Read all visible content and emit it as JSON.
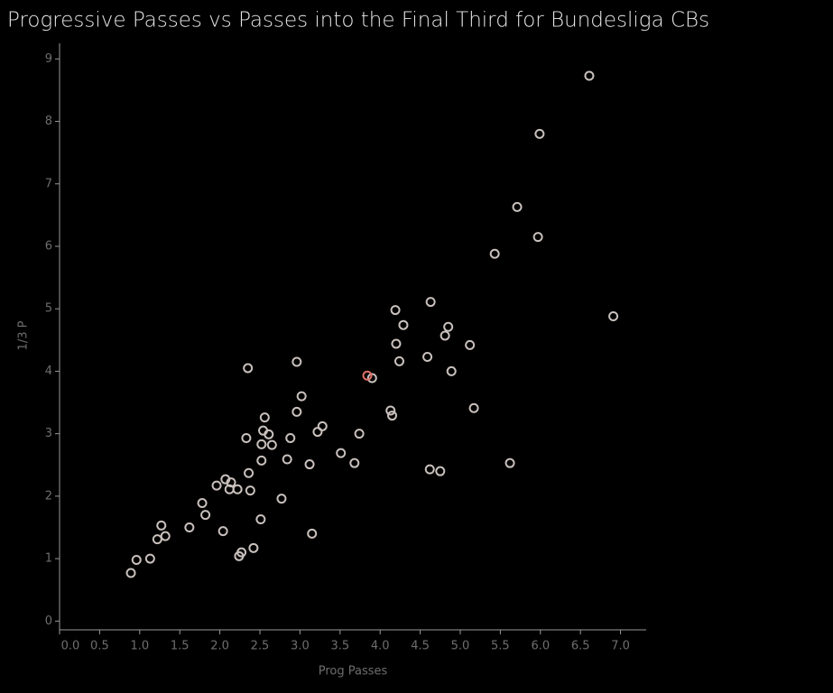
{
  "chart_data": {
    "type": "scatter",
    "title": "Progressive Passes vs Passes into the Final Third for Bundesliga CBs",
    "x_label": "Prog Passes",
    "y_label": "1/3 P",
    "series": [
      {
        "color": "#c8c0bc",
        "x": [
          6.61,
          5.99,
          5.71,
          5.97,
          5.43,
          6.91,
          4.63,
          4.19,
          4.29,
          4.85,
          4.81,
          4.2,
          5.12,
          4.59,
          4.24,
          4.89,
          2.35,
          2.96,
          3.9,
          3.02,
          4.13,
          4.15,
          5.17,
          2.96,
          2.56,
          3.28,
          3.22,
          2.54,
          2.61,
          3.74,
          2.88,
          2.33,
          2.52,
          2.65,
          3.51,
          2.52,
          2.84,
          3.12,
          3.68,
          5.62,
          4.62,
          4.75,
          2.36,
          2.07,
          2.14,
          1.96,
          2.12,
          2.22,
          2.38,
          2.77,
          1.78,
          1.82,
          2.51,
          1.62,
          2.04,
          3.15,
          1.27,
          1.32,
          1.22,
          2.42,
          2.27,
          2.24,
          0.96,
          1.13,
          0.89
        ],
        "values": [
          8.73,
          7.8,
          6.63,
          6.15,
          5.88,
          4.88,
          5.11,
          4.98,
          4.74,
          4.71,
          4.57,
          4.44,
          4.42,
          4.23,
          4.16,
          4.0,
          4.05,
          4.15,
          3.89,
          3.6,
          3.37,
          3.29,
          3.41,
          3.35,
          3.26,
          3.12,
          3.03,
          3.05,
          2.99,
          3.0,
          2.93,
          2.93,
          2.83,
          2.82,
          2.69,
          2.57,
          2.59,
          2.51,
          2.53,
          2.53,
          2.43,
          2.4,
          2.37,
          2.27,
          2.22,
          2.17,
          2.11,
          2.11,
          2.09,
          1.96,
          1.89,
          1.7,
          1.63,
          1.5,
          1.44,
          1.4,
          1.53,
          1.36,
          1.31,
          1.17,
          1.1,
          1.04,
          0.98,
          1.0,
          0.77
        ]
      },
      {
        "color": "#e07068",
        "x": [
          3.84
        ],
        "values": [
          3.93
        ]
      }
    ],
    "xlim": [
      0,
      7.32
    ],
    "ylim": [
      -0.14,
      9.25
    ],
    "xticks": [
      {
        "value": 0,
        "label": "0.0"
      },
      {
        "value": 0.5,
        "label": "0.5"
      },
      {
        "value": 1,
        "label": "1.0"
      },
      {
        "value": 1.5,
        "label": "1.5"
      },
      {
        "value": 2,
        "label": "2.0"
      },
      {
        "value": 2.5,
        "label": "2.5"
      },
      {
        "value": 3,
        "label": "3.0"
      },
      {
        "value": 3.5,
        "label": "3.5"
      },
      {
        "value": 4,
        "label": "4.0"
      },
      {
        "value": 4.5,
        "label": "4.5"
      },
      {
        "value": 5,
        "label": "5.0"
      },
      {
        "value": 5.5,
        "label": "5.5"
      },
      {
        "value": 6,
        "label": "6.0"
      },
      {
        "value": 6.5,
        "label": "6.5"
      },
      {
        "value": 7,
        "label": "7.0"
      }
    ],
    "yticks": [
      0,
      1,
      2,
      3,
      4,
      5,
      6,
      7,
      8,
      9
    ]
  }
}
